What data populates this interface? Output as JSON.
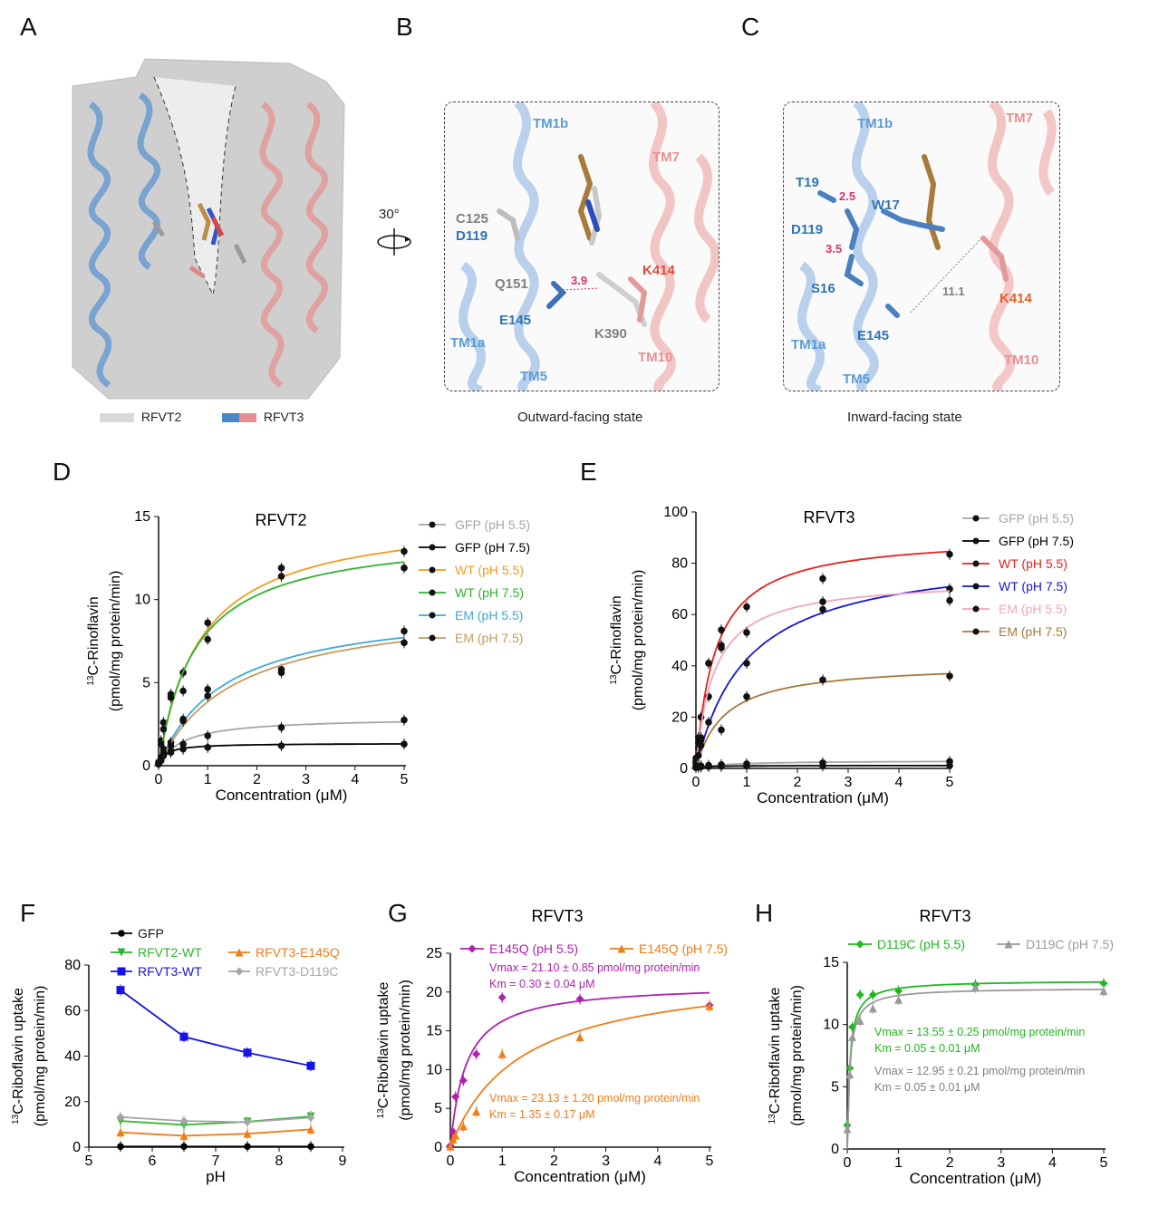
{
  "panels": {
    "A": "A",
    "B": "B",
    "C": "C",
    "D": "D",
    "E": "E",
    "F": "F",
    "G": "G",
    "H": "H"
  },
  "panelA": {
    "legend": [
      {
        "label": "RFVT2",
        "colors": [
          "#d9d9d9",
          "#d9d9d9"
        ]
      },
      {
        "label": "RFVT3",
        "colors": [
          "#4a86c8",
          "#e89090"
        ]
      }
    ]
  },
  "rotation": {
    "label": "30°"
  },
  "panelB": {
    "caption": "Outward-facing state",
    "labels": [
      {
        "text": "TM1b",
        "color": "#5b9bd5"
      },
      {
        "text": "TM7",
        "color": "#e89090"
      },
      {
        "text": "C125",
        "color": "#7f7f7f"
      },
      {
        "text": "D119",
        "color": "#2e75b6"
      },
      {
        "text": "K414",
        "color": "#e04b3a"
      },
      {
        "text": "Q151",
        "color": "#7f7f7f"
      },
      {
        "text": "3.9",
        "color": "#d6336c"
      },
      {
        "text": "E145",
        "color": "#2e75b6"
      },
      {
        "text": "K390",
        "color": "#7f7f7f"
      },
      {
        "text": "TM1a",
        "color": "#5b9bd5"
      },
      {
        "text": "TM10",
        "color": "#e89090"
      },
      {
        "text": "TM5",
        "color": "#5b9bd5"
      }
    ]
  },
  "panelC": {
    "caption": "Inward-facing state",
    "labels": [
      {
        "text": "TM1b",
        "color": "#5b9bd5"
      },
      {
        "text": "TM7",
        "color": "#e89090"
      },
      {
        "text": "T19",
        "color": "#2e75b6"
      },
      {
        "text": "2.5",
        "color": "#d6336c"
      },
      {
        "text": "W17",
        "color": "#2e75b6"
      },
      {
        "text": "D119",
        "color": "#2e75b6"
      },
      {
        "text": "3.5",
        "color": "#d6336c"
      },
      {
        "text": "S16",
        "color": "#2e75b6"
      },
      {
        "text": "11.1",
        "color": "#7f7f7f"
      },
      {
        "text": "K414",
        "color": "#e0622a"
      },
      {
        "text": "TM1a",
        "color": "#5b9bd5"
      },
      {
        "text": "E145",
        "color": "#2e75b6"
      },
      {
        "text": "TM10",
        "color": "#e89090"
      },
      {
        "text": "TM5",
        "color": "#5b9bd5"
      }
    ]
  },
  "chart_data": [
    {
      "id": "D",
      "type": "line",
      "title": "RFVT2",
      "xlabel": "Concentration (μM)",
      "ylabel_sup": "13",
      "ylabel_1": "C-Rinoflavin",
      "ylabel_2": "(pmol/mg protein/min)",
      "xlim": [
        0,
        5
      ],
      "ylim": [
        0,
        15
      ],
      "xticks": [
        0,
        1,
        2,
        3,
        4,
        5
      ],
      "yticks": [
        0,
        5,
        10,
        15
      ],
      "x": [
        0,
        0.05,
        0.1,
        0.25,
        0.5,
        1,
        2.5,
        5
      ],
      "series": [
        {
          "name": "GFP (pH 5.5)",
          "color": "#a6a6a6",
          "values": [
            0.1,
            0.3,
            0.6,
            0.9,
            1.3,
            1.8,
            2.3,
            2.75
          ],
          "vmax": 2.9,
          "km": 0.5
        },
        {
          "name": "GFP (pH 7.5)",
          "color": "#000000",
          "values": [
            0.1,
            0.4,
            0.6,
            0.8,
            1.0,
            1.1,
            1.2,
            1.3
          ],
          "vmax": 1.35,
          "km": 0.15
        },
        {
          "name": "WT (pH 5.5)",
          "color": "#f59b1f",
          "values": [
            0.2,
            1.5,
            2.6,
            4.3,
            5.6,
            8.6,
            11.9,
            12.9
          ],
          "vmax": 15.2,
          "km": 0.85
        },
        {
          "name": "WT (pH 7.5)",
          "color": "#2bb52b",
          "values": [
            0.2,
            1.3,
            2.2,
            4.1,
            4.5,
            7.6,
            11.4,
            11.9
          ],
          "vmax": 14.1,
          "km": 0.75
        },
        {
          "name": "EM (pH 5.5)",
          "color": "#3fa7d6",
          "values": [
            0.1,
            0.5,
            1.0,
            1.4,
            2.8,
            4.6,
            5.8,
            8.1
          ],
          "vmax": 9.8,
          "km": 1.35
        },
        {
          "name": "EM (pH 7.5)",
          "color": "#c59a5b",
          "values": [
            0.1,
            0.4,
            0.8,
            1.2,
            2.7,
            4.2,
            5.6,
            7.4
          ],
          "vmax": 9.8,
          "km": 1.55
        }
      ]
    },
    {
      "id": "E",
      "type": "line",
      "title": "RFVT3",
      "xlabel": "Concentration (μM)",
      "ylabel_sup": "13",
      "ylabel_1": "C-Rinoflavin",
      "ylabel_2": "(pmol/mg protein/min)",
      "xlim": [
        0,
        5
      ],
      "ylim": [
        0,
        100
      ],
      "xticks": [
        0,
        1,
        2,
        3,
        4,
        5
      ],
      "yticks": [
        0,
        20,
        40,
        60,
        80,
        100
      ],
      "x": [
        0,
        0.05,
        0.1,
        0.25,
        0.5,
        1,
        2.5,
        5
      ],
      "series": [
        {
          "name": "GFP (pH 5.5)",
          "color": "#a6a6a6",
          "values": [
            0.5,
            0.8,
            1.0,
            1.2,
            1.5,
            1.8,
            2.2,
            2.7
          ],
          "vmax": 3.0,
          "km": 0.6
        },
        {
          "name": "GFP (pH 7.5)",
          "color": "#000000",
          "values": [
            0.3,
            0.5,
            0.6,
            0.7,
            0.8,
            0.9,
            1.0,
            1.1
          ],
          "vmax": 1.15,
          "km": 0.2
        },
        {
          "name": "WT (pH 5.5)",
          "color": "#e8201c",
          "values": [
            4,
            12,
            20,
            41,
            54,
            63,
            74,
            83.5
          ],
          "vmax": 91,
          "km": 0.38
        },
        {
          "name": "WT (pH 7.5)",
          "color": "#1414e6",
          "values": [
            2,
            8,
            11,
            28,
            47,
            41,
            62,
            70
          ],
          "vmax": 85,
          "km": 1.0
        },
        {
          "name": "EM (pH 5.5)",
          "color": "#f4a6b8",
          "values": [
            3,
            10,
            12,
            41,
            48,
            53,
            65,
            65.5
          ],
          "vmax": 74,
          "km": 0.35
        },
        {
          "name": "EM (pH 7.5)",
          "color": "#a8773b",
          "values": [
            1,
            5,
            9,
            18,
            15,
            28,
            34.5,
            36
          ],
          "vmax": 41,
          "km": 0.55
        }
      ]
    },
    {
      "id": "F",
      "type": "line",
      "title": "",
      "xlabel": "pH",
      "ylabel_sup": "13",
      "ylabel_1": "C-Riboflavin uptake",
      "ylabel_2": "(pmol/mg protein/min)",
      "xlim": [
        5,
        9
      ],
      "ylim": [
        0,
        80
      ],
      "xticks": [
        5,
        6,
        7,
        8,
        9
      ],
      "yticks": [
        0,
        20,
        40,
        60,
        80
      ],
      "x": [
        5.5,
        6.5,
        7.5,
        8.5
      ],
      "series": [
        {
          "name": "GFP",
          "color": "#000000",
          "marker": "circle",
          "values": [
            0.3,
            0.3,
            0.3,
            0.3
          ]
        },
        {
          "name": "RFVT2-WT",
          "color": "#2bb52b",
          "marker": "tri-down",
          "values": [
            11.5,
            9.8,
            11.2,
            13.5
          ]
        },
        {
          "name": "RFVT3-WT",
          "color": "#1414e6",
          "marker": "square",
          "values": [
            69,
            48.5,
            41.5,
            35.7
          ]
        },
        {
          "name": "RFVT3-E145Q",
          "color": "#f07d1a",
          "marker": "tri-up",
          "values": [
            6.5,
            5.0,
            5.9,
            7.8
          ]
        },
        {
          "name": "RFVT3-D119C",
          "color": "#a6a6a6",
          "marker": "diamond",
          "values": [
            13.2,
            11.5,
            11.0,
            13.0
          ]
        }
      ]
    },
    {
      "id": "G",
      "type": "line",
      "title": "RFVT3",
      "xlabel": "Concentration (μM)",
      "ylabel_sup": "13",
      "ylabel_1": "C-Riboflavin uptake",
      "ylabel_2": "(pmol/mg protein/min)",
      "xlim": [
        0,
        5
      ],
      "ylim": [
        0,
        25
      ],
      "xticks": [
        0,
        1,
        2,
        3,
        4,
        5
      ],
      "yticks": [
        0,
        5,
        10,
        15,
        20,
        25
      ],
      "x": [
        0,
        0.05,
        0.1,
        0.25,
        0.5,
        1,
        2.5,
        5
      ],
      "series": [
        {
          "name": "E145Q (pH 5.5)",
          "color": "#b01fb0",
          "marker": "diamond",
          "values": [
            0.2,
            2.0,
            6.5,
            8.6,
            12.0,
            19.3,
            19.1,
            18.3
          ],
          "vmax": 21.1,
          "km": 0.3
        },
        {
          "name": "E145Q (pH 7.5)",
          "color": "#f07d1a",
          "marker": "tri-up",
          "values": [
            0.1,
            1.0,
            1.5,
            2.7,
            4.6,
            12.0,
            14.2,
            18.2
          ],
          "vmax": 23.13,
          "km": 1.35
        }
      ],
      "annotations": [
        {
          "line1": "Vmax = 21.10 ± 0.85 pmol/mg protein/min",
          "line2": "Km = 0.30 ± 0.04 μM",
          "color": "#b01fb0"
        },
        {
          "line1": "Vmax = 23.13 ± 1.20 pmol/mg protein/min",
          "line2": "Km = 1.35 ± 0.17 μM",
          "color": "#f07d1a"
        }
      ]
    },
    {
      "id": "H",
      "type": "line",
      "title": "RFVT3",
      "xlabel": "Concentration (μM)",
      "ylabel_sup": "13",
      "ylabel_1": "C-Riboflavin uptake",
      "ylabel_2": "(pmol/mg protein/min)",
      "xlim": [
        0,
        5
      ],
      "ylim": [
        0,
        15
      ],
      "xticks": [
        0,
        1,
        2,
        3,
        4,
        5
      ],
      "yticks": [
        0,
        5,
        10,
        15
      ],
      "x": [
        0,
        0.05,
        0.1,
        0.25,
        0.5,
        1,
        2.5,
        5
      ],
      "series": [
        {
          "name": "D119C (pH 5.5)",
          "color": "#1fb81f",
          "marker": "diamond",
          "values": [
            1.9,
            6.5,
            9.8,
            12.4,
            12.4,
            12.7,
            13.2,
            13.3
          ],
          "vmax": 13.55,
          "km": 0.05
        },
        {
          "name": "D119C (pH 7.5)",
          "color": "#9a9a9a",
          "marker": "tri-up",
          "values": [
            1.6,
            6.0,
            9.0,
            10.3,
            11.3,
            12.0,
            13.0,
            12.7
          ],
          "vmax": 12.95,
          "km": 0.05
        }
      ],
      "annotations": [
        {
          "line1": "Vmax = 13.55 ± 0.25 pmol/mg protein/min",
          "line2": "Km = 0.05 ± 0.01 μM",
          "color": "#1fb81f"
        },
        {
          "line1": "Vmax = 12.95 ± 0.21 pmol/mg protein/min",
          "line2": "Km = 0.05 ± 0.01 μM",
          "color": "#7f7f7f"
        }
      ]
    }
  ]
}
